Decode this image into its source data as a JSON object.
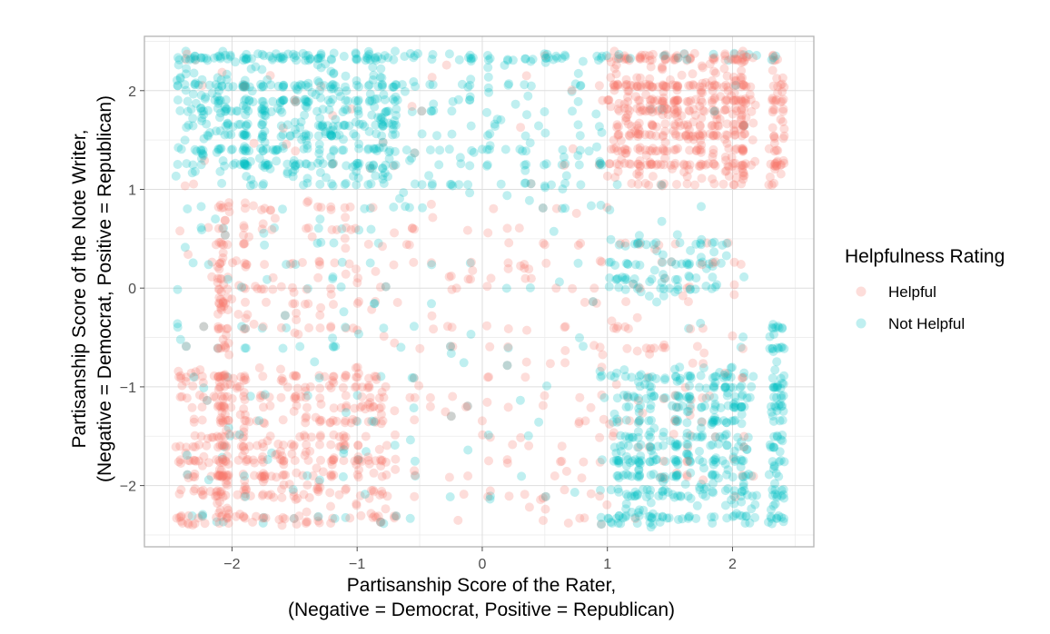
{
  "chart_data": {
    "type": "scatter",
    "title": "",
    "xlabel_lines": [
      "Partisanship Score of the Rater,",
      "(Negative = Democrat, Positive = Republican)"
    ],
    "ylabel_lines": [
      "Partisanship Score of the Note Writer,",
      "(Negative = Democrat, Positive = Republican)"
    ],
    "xlim": [
      -2.7,
      2.65
    ],
    "ylim": [
      -2.62,
      2.55
    ],
    "x_ticks": [
      -2,
      -1,
      0,
      1,
      2
    ],
    "y_ticks": [
      -2,
      -1,
      0,
      1,
      2
    ],
    "x_tick_labels": [
      "−2",
      "−1",
      "0",
      "1",
      "2"
    ],
    "y_tick_labels": [
      "−2",
      "−1",
      "0",
      "1",
      "2"
    ],
    "grid": true,
    "point_alpha": 0.25,
    "legend": {
      "title": "Helpfulness Rating",
      "position": "right",
      "entries": [
        {
          "label": "Helpful",
          "color": "#F8766D"
        },
        {
          "label": "Not Helpful",
          "color": "#00BFC4"
        }
      ]
    },
    "series": [
      {
        "name": "Helpful",
        "color": "#F8766D",
        "cluster_summary": [
          {
            "x_range": [
              1.0,
              2.2
            ],
            "y_range": [
              1.2,
              2.4
            ],
            "density": "very high"
          },
          {
            "x_range": [
              -2.5,
              -0.7
            ],
            "y_range": [
              -2.4,
              -0.8
            ],
            "density": "very high"
          },
          {
            "x_range": [
              -2.2,
              -0.8
            ],
            "y_range": [
              -0.4,
              0.9
            ],
            "density": "medium"
          },
          {
            "x_range": [
              2.3,
              2.4
            ],
            "y_range": [
              1.2,
              2.4
            ],
            "density": "high"
          }
        ]
      },
      {
        "name": "Not Helpful",
        "color": "#00BFC4",
        "cluster_summary": [
          {
            "x_range": [
              -2.5,
              -0.7
            ],
            "y_range": [
              1.2,
              2.4
            ],
            "density": "very high"
          },
          {
            "x_range": [
              1.0,
              2.2
            ],
            "y_range": [
              -2.4,
              -0.8
            ],
            "density": "very high"
          },
          {
            "x_range": [
              1.0,
              2.0
            ],
            "y_range": [
              -0.1,
              0.5
            ],
            "density": "medium"
          },
          {
            "x_range": [
              2.3,
              2.4
            ],
            "y_range": [
              -2.4,
              -0.4
            ],
            "density": "high"
          }
        ]
      }
    ]
  }
}
